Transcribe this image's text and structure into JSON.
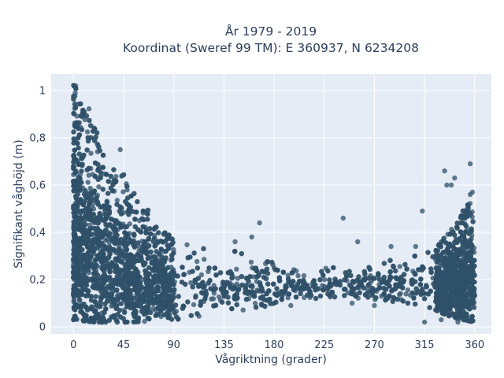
{
  "chart_data": {
    "type": "scatter",
    "title": "År 1979 - 2019",
    "subtitle": "Koordinat (Sweref 99 TM): E 360937, N 6234208",
    "xlabel": "Vågriktning (grader)",
    "ylabel": "Signifikant våghöjd (m)",
    "xlim": [
      -20,
      375
    ],
    "ylim": [
      -0.03,
      1.07
    ],
    "xticks": [
      0,
      45,
      90,
      135,
      180,
      225,
      270,
      315,
      360
    ],
    "xtick_labels": [
      "0",
      "45",
      "90",
      "135",
      "180",
      "225",
      "270",
      "315",
      "360"
    ],
    "yticks": [
      0,
      0.2,
      0.4,
      0.6,
      0.8,
      1
    ],
    "ytick_labels": [
      "0",
      "0,2",
      "0,4",
      "0,6",
      "0,8",
      "1"
    ],
    "grid": true,
    "marker_color": "#2f5068",
    "background_color": "#e5ecf6",
    "upper_envelope": [
      {
        "x": 0,
        "y": 1.03
      },
      {
        "x": 5,
        "y": 1.0
      },
      {
        "x": 10,
        "y": 0.96
      },
      {
        "x": 15,
        "y": 0.92
      },
      {
        "x": 20,
        "y": 0.85
      },
      {
        "x": 25,
        "y": 0.78
      },
      {
        "x": 30,
        "y": 0.74
      },
      {
        "x": 35,
        "y": 0.7
      },
      {
        "x": 40,
        "y": 0.68
      },
      {
        "x": 45,
        "y": 0.65
      },
      {
        "x": 50,
        "y": 0.6
      },
      {
        "x": 60,
        "y": 0.54
      },
      {
        "x": 70,
        "y": 0.48
      },
      {
        "x": 80,
        "y": 0.42
      },
      {
        "x": 90,
        "y": 0.37
      },
      {
        "x": 110,
        "y": 0.34
      },
      {
        "x": 130,
        "y": 0.33
      },
      {
        "x": 150,
        "y": 0.33
      },
      {
        "x": 170,
        "y": 0.31
      },
      {
        "x": 180,
        "y": 0.28
      },
      {
        "x": 200,
        "y": 0.25
      },
      {
        "x": 220,
        "y": 0.25
      },
      {
        "x": 240,
        "y": 0.26
      },
      {
        "x": 260,
        "y": 0.27
      },
      {
        "x": 280,
        "y": 0.28
      },
      {
        "x": 300,
        "y": 0.29
      },
      {
        "x": 320,
        "y": 0.33
      },
      {
        "x": 330,
        "y": 0.36
      },
      {
        "x": 340,
        "y": 0.42
      },
      {
        "x": 350,
        "y": 0.5
      },
      {
        "x": 360,
        "y": 0.55
      }
    ],
    "lower_envelope": [
      {
        "x": 0,
        "y": 0.03
      },
      {
        "x": 20,
        "y": 0.02
      },
      {
        "x": 50,
        "y": 0.02
      },
      {
        "x": 90,
        "y": 0.03
      },
      {
        "x": 120,
        "y": 0.05
      },
      {
        "x": 150,
        "y": 0.07
      },
      {
        "x": 170,
        "y": 0.08
      },
      {
        "x": 180,
        "y": 0.1
      },
      {
        "x": 200,
        "y": 0.12
      },
      {
        "x": 220,
        "y": 0.12
      },
      {
        "x": 240,
        "y": 0.12
      },
      {
        "x": 260,
        "y": 0.12
      },
      {
        "x": 280,
        "y": 0.11
      },
      {
        "x": 300,
        "y": 0.1
      },
      {
        "x": 320,
        "y": 0.08
      },
      {
        "x": 340,
        "y": 0.04
      },
      {
        "x": 360,
        "y": 0.02
      }
    ],
    "outliers": [
      {
        "x": 2,
        "y": 1.02
      },
      {
        "x": 42,
        "y": 0.75
      },
      {
        "x": 167,
        "y": 0.44
      },
      {
        "x": 242,
        "y": 0.46
      },
      {
        "x": 313,
        "y": 0.49
      },
      {
        "x": 333,
        "y": 0.66
      },
      {
        "x": 335,
        "y": 0.6
      },
      {
        "x": 339,
        "y": 0.6
      },
      {
        "x": 342,
        "y": 0.63
      },
      {
        "x": 356,
        "y": 0.69
      },
      {
        "x": 356,
        "y": 0.56
      },
      {
        "x": 358,
        "y": 0.57
      },
      {
        "x": 330,
        "y": 0.36
      },
      {
        "x": 255,
        "y": 0.36
      },
      {
        "x": 285,
        "y": 0.34
      },
      {
        "x": 307,
        "y": 0.34
      },
      {
        "x": 160,
        "y": 0.38
      },
      {
        "x": 145,
        "y": 0.36
      },
      {
        "x": 315,
        "y": 0.02
      },
      {
        "x": 330,
        "y": 0.03
      },
      {
        "x": 345,
        "y": 0.02
      },
      {
        "x": 250,
        "y": 0.1
      },
      {
        "x": 270,
        "y": 0.09
      },
      {
        "x": 195,
        "y": 0.09
      }
    ]
  }
}
